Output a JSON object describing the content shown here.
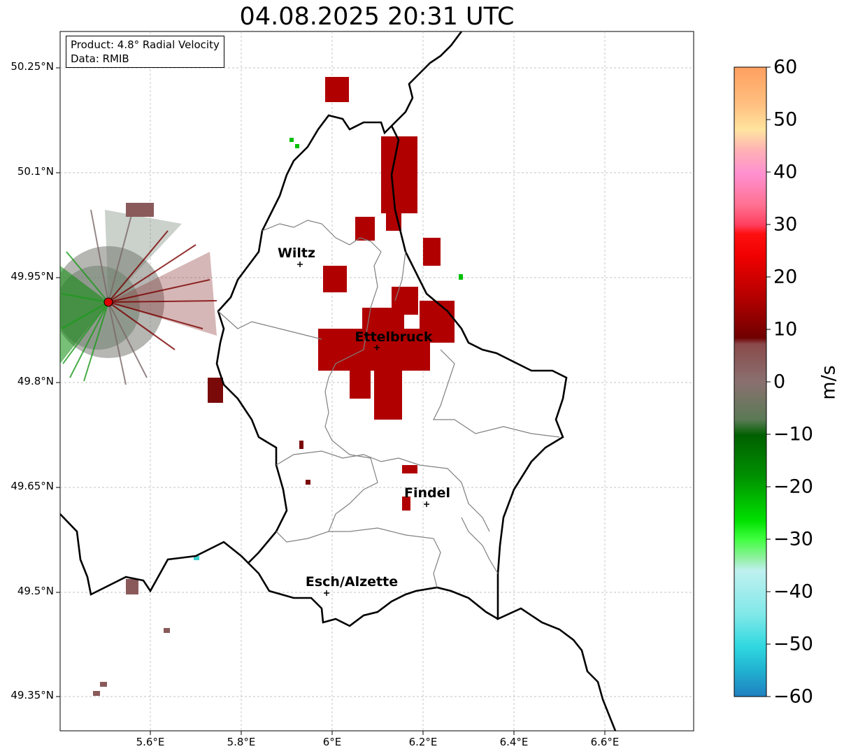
{
  "title": "04.08.2025 20:31 UTC",
  "info": {
    "product": "Product: 4.8° Radial Velocity",
    "data_source": "Data: RMIB"
  },
  "axes": {
    "lat_ticks": [
      "50.25°N",
      "50.1°N",
      "49.95°N",
      "49.8°N",
      "49.65°N",
      "49.5°N",
      "49.35°N"
    ],
    "lon_ticks": [
      "5.6°E",
      "5.8°E",
      "6°E",
      "6.2°E",
      "6.4°E",
      "6.6°E"
    ]
  },
  "cities": [
    {
      "name": "Wiltz"
    },
    {
      "name": "Ettelbruck"
    },
    {
      "name": "Findel"
    },
    {
      "name": "Esch/Alzette"
    }
  ],
  "colorbar": {
    "unit": "m/s",
    "ticks": [
      "60",
      "50",
      "40",
      "30",
      "20",
      "10",
      "0",
      "−10",
      "−20",
      "−30",
      "−40",
      "−50",
      "−60"
    ],
    "min": -60,
    "max": 60
  },
  "colors": {
    "strong_outbound": "#b00000",
    "inbound": "#008800",
    "near_zero": "#7a7070",
    "border": "#000000",
    "admin_border": "#808080"
  }
}
